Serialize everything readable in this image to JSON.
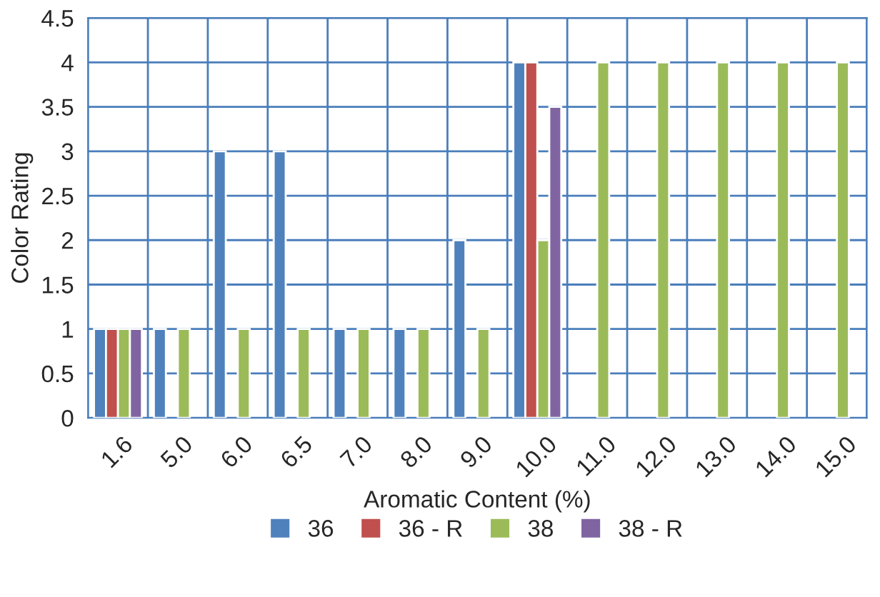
{
  "chart_data": {
    "type": "bar",
    "xlabel": "Aromatic Content (%)",
    "ylabel": "Color Rating",
    "categories": [
      "1.6",
      "5.0",
      "6.0",
      "6.5",
      "7.0",
      "8.0",
      "9.0",
      "10.0",
      "11.0",
      "12.0",
      "13.0",
      "14.0",
      "15.0"
    ],
    "series": [
      {
        "name": "36",
        "color": "#4f81bd",
        "values": [
          1,
          1,
          3,
          3,
          1,
          1,
          2,
          4,
          null,
          null,
          null,
          null,
          null
        ]
      },
      {
        "name": "36 - R",
        "color": "#c0504d",
        "values": [
          1,
          null,
          null,
          null,
          null,
          null,
          null,
          4,
          null,
          null,
          null,
          null,
          null
        ]
      },
      {
        "name": "38",
        "color": "#9bbb59",
        "values": [
          1,
          1,
          1,
          1,
          1,
          1,
          1,
          2,
          4,
          4,
          4,
          4,
          4
        ]
      },
      {
        "name": "38 - R",
        "color": "#8064a2",
        "values": [
          1,
          null,
          null,
          null,
          null,
          null,
          null,
          3.5,
          null,
          null,
          null,
          null,
          null
        ]
      }
    ],
    "ylim": [
      0,
      4.5
    ],
    "yticks": [
      0,
      0.5,
      1,
      1.5,
      2,
      2.5,
      3,
      3.5,
      4,
      4.5
    ],
    "grid": true,
    "legend": "bottom"
  }
}
